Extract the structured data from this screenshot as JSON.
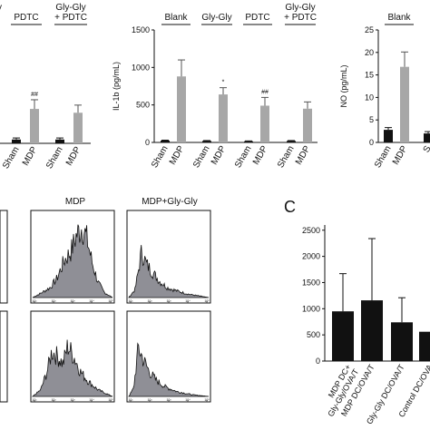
{
  "colors": {
    "black": "#111111",
    "gray": "#a7a7a7",
    "fill": "#8f8f96"
  },
  "chart_data": [
    {
      "type": "bar",
      "panel": "left-top",
      "group_labels": [
        "PDTC",
        "Gly-Gly\n+ PDTC"
      ],
      "categories": [
        "Sham",
        "MDP",
        "Sham",
        "MDP"
      ],
      "values": [
        5,
        45,
        5,
        40
      ],
      "errors": [
        2,
        12,
        2,
        10
      ],
      "ylim": [
        0,
        140
      ],
      "annotations": [
        "",
        "##",
        "",
        ""
      ],
      "top_left_fragment": "y"
    },
    {
      "type": "bar",
      "panel": "middle-top",
      "ylabel": "IL-1b (pg/mL)",
      "yticks": [
        0,
        500,
        1000,
        1500
      ],
      "ylim": [
        0,
        1500
      ],
      "group_labels": [
        "Blank",
        "Gly-Gly",
        "PDTC",
        "Gly-Gly\n+ PDTC"
      ],
      "categories": [
        "Sham",
        "MDP",
        "Sham",
        "MDP",
        "Sham",
        "MDP",
        "Sham",
        "MDP"
      ],
      "values": [
        25,
        880,
        20,
        640,
        15,
        490,
        20,
        450
      ],
      "errors": [
        5,
        220,
        5,
        90,
        5,
        110,
        5,
        90
      ],
      "annotations": [
        "",
        "",
        "",
        "*",
        "",
        "##",
        "",
        ""
      ]
    },
    {
      "type": "bar",
      "panel": "right-top",
      "ylabel": "NO (pg/mL)",
      "yticks": [
        0,
        5,
        10,
        15,
        20,
        25
      ],
      "ylim": [
        0,
        25
      ],
      "group_labels": [
        "Blank"
      ],
      "categories": [
        "Sham",
        "MDP",
        "S"
      ],
      "values": [
        2.8,
        16.8,
        2.0
      ],
      "errors": [
        0.5,
        3.3,
        0.4
      ]
    },
    {
      "type": "histogram",
      "panel": "flow-cytometry",
      "column_titles": [
        "MDP",
        "MDP+Gly-Gly"
      ],
      "axis_ticks": [
        "10¹",
        "10²",
        "10³",
        "10⁴",
        "10⁵"
      ]
    },
    {
      "type": "bar",
      "panel": "C",
      "panel_label": "C",
      "yticks": [
        0,
        500,
        1000,
        1500,
        2000,
        2500
      ],
      "ylim": [
        0,
        2600
      ],
      "categories": [
        "MDP DC+\nGly-Gly/OVA/T",
        "MDP DC/OVA/T",
        "Gly-Gly DC/OVA/T",
        "Control DC/OVA"
      ],
      "values": [
        950,
        1160,
        740,
        560
      ],
      "errors": [
        720,
        1180,
        470,
        0
      ]
    }
  ]
}
